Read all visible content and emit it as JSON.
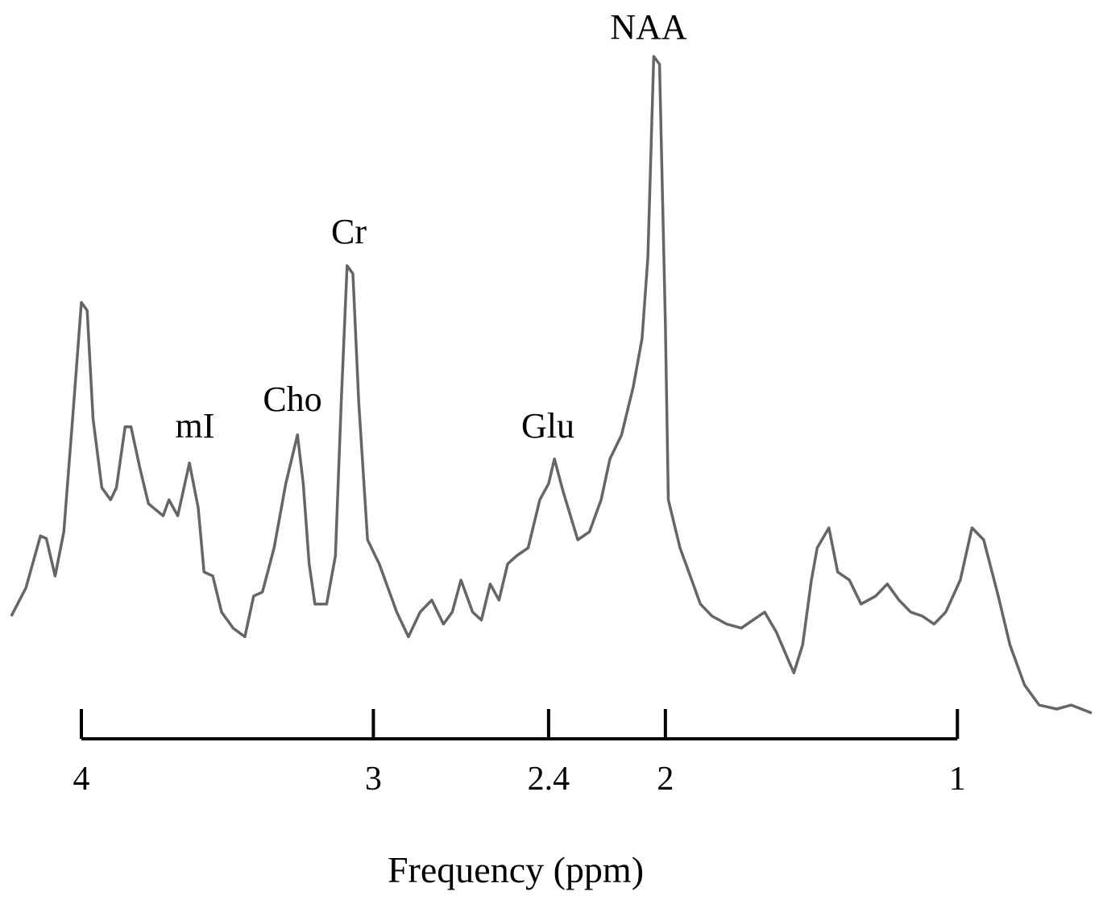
{
  "chart_data": {
    "type": "line",
    "x_label": "Frequency (ppm)",
    "annotations": [
      "NAA",
      "Cr",
      "Cho",
      "mI",
      "Glu"
    ],
    "color": "#666666",
    "xlim": [
      4.24,
      0.54
    ],
    "xticks": [
      4,
      3,
      2.4,
      2,
      1
    ],
    "ylim": [
      0,
      100
    ],
    "x": [
      4.24,
      4.19,
      4.14,
      4.12,
      4.09,
      4.06,
      4.03,
      4.0,
      3.98,
      3.96,
      3.93,
      3.9,
      3.88,
      3.85,
      3.83,
      3.8,
      3.77,
      3.72,
      3.7,
      3.67,
      3.63,
      3.6,
      3.58,
      3.55,
      3.52,
      3.48,
      3.44,
      3.41,
      3.38,
      3.34,
      3.3,
      3.26,
      3.24,
      3.22,
      3.2,
      3.16,
      3.13,
      3.11,
      3.09,
      3.07,
      3.05,
      3.02,
      2.98,
      2.92,
      2.88,
      2.84,
      2.8,
      2.76,
      2.73,
      2.7,
      2.66,
      2.63,
      2.6,
      2.57,
      2.54,
      2.51,
      2.47,
      2.43,
      2.4,
      2.38,
      2.35,
      2.3,
      2.26,
      2.22,
      2.19,
      2.15,
      2.11,
      2.08,
      2.06,
      2.04,
      2.02,
      2.0,
      1.99,
      1.95,
      1.91,
      1.88,
      1.84,
      1.79,
      1.74,
      1.7,
      1.66,
      1.62,
      1.56,
      1.53,
      1.5,
      1.48,
      1.44,
      1.41,
      1.37,
      1.33,
      1.28,
      1.24,
      1.2,
      1.16,
      1.12,
      1.08,
      1.04,
      0.99,
      0.95,
      0.91,
      0.86,
      0.82,
      0.77,
      0.72,
      0.66,
      0.61,
      0.54
    ],
    "values": [
      15.1,
      19.3,
      27.1,
      26.7,
      21.1,
      27.7,
      44.6,
      62.0,
      60.8,
      44.6,
      34.3,
      32.5,
      34.3,
      43.4,
      43.4,
      37.3,
      31.9,
      30.1,
      32.5,
      30.1,
      38.0,
      31.3,
      21.7,
      21.1,
      15.7,
      13.3,
      12.0,
      18.1,
      18.7,
      25.3,
      34.9,
      42.2,
      34.9,
      22.9,
      16.9,
      16.9,
      24.1,
      47.0,
      67.5,
      66.3,
      47.0,
      26.5,
      22.9,
      15.7,
      12.0,
      15.7,
      17.5,
      13.9,
      15.7,
      20.5,
      15.7,
      14.5,
      19.9,
      17.5,
      22.9,
      24.1,
      25.3,
      32.5,
      34.9,
      38.6,
      33.7,
      26.5,
      27.7,
      32.5,
      38.6,
      42.2,
      49.4,
      56.6,
      68.7,
      98.8,
      97.6,
      59.0,
      32.5,
      25.3,
      20.5,
      16.9,
      15.1,
      13.9,
      13.3,
      14.5,
      15.7,
      12.7,
      6.6,
      10.8,
      20.5,
      25.3,
      28.3,
      21.7,
      20.5,
      16.9,
      18.1,
      19.9,
      17.5,
      15.7,
      15.1,
      13.9,
      15.7,
      20.5,
      28.3,
      26.5,
      18.1,
      10.8,
      4.8,
      1.8,
      1.2,
      1.8,
      0.6
    ]
  }
}
